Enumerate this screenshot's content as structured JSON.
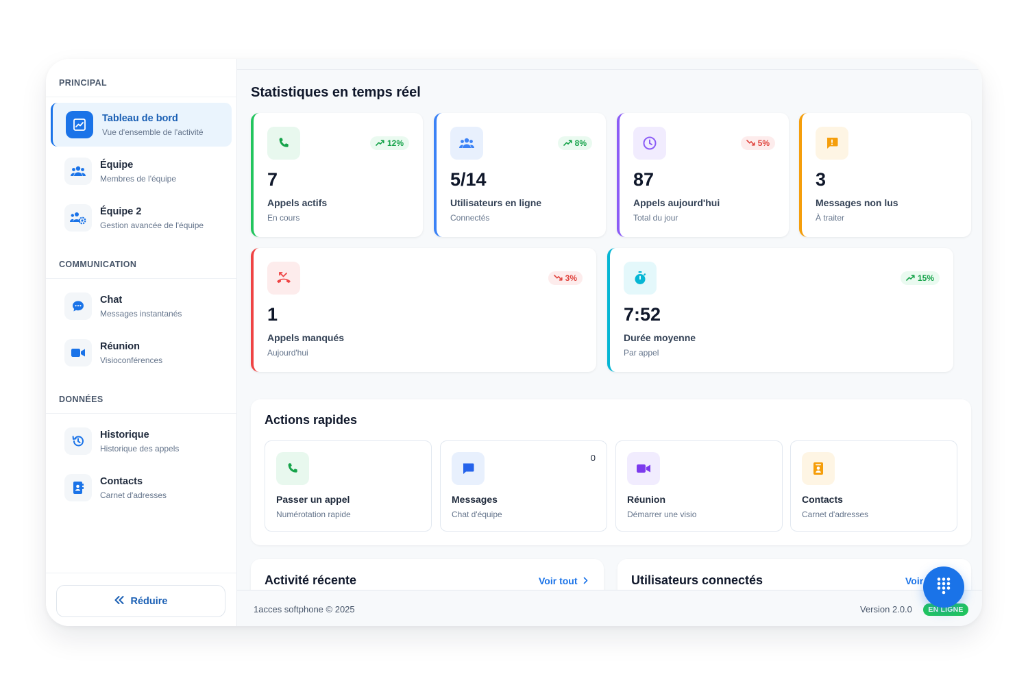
{
  "sidebar": {
    "sections": [
      {
        "title": "PRINCIPAL",
        "items": [
          {
            "label": "Tableau de bord",
            "sub": "Vue d'ensemble de l'activité",
            "icon": "chart-line-icon",
            "active": true
          },
          {
            "label": "Équipe",
            "sub": "Membres de l'équipe",
            "icon": "users-icon"
          },
          {
            "label": "Équipe 2",
            "sub": "Gestion avancée de l'équipe",
            "icon": "users-gear-icon"
          }
        ]
      },
      {
        "title": "COMMUNICATION",
        "items": [
          {
            "label": "Chat",
            "sub": "Messages instantanés",
            "icon": "chat-bubble-icon"
          },
          {
            "label": "Réunion",
            "sub": "Visioconférences",
            "icon": "video-camera-icon"
          }
        ]
      },
      {
        "title": "DONNÉES",
        "items": [
          {
            "label": "Historique",
            "sub": "Historique des appels",
            "icon": "history-icon"
          },
          {
            "label": "Contacts",
            "sub": "Carnet d'adresses",
            "icon": "address-book-icon"
          }
        ]
      }
    ],
    "collapse_label": "Réduire"
  },
  "main": {
    "title": "Statistiques en temps réel",
    "stats": [
      {
        "value": "7",
        "label": "Appels actifs",
        "sub": "En cours",
        "trend": "12%",
        "direction": "up",
        "color": "#22c55e",
        "icon": "phone-icon"
      },
      {
        "value": "5/14",
        "label": "Utilisateurs en ligne",
        "sub": "Connectés",
        "trend": "8%",
        "direction": "up",
        "color": "#3b82f6",
        "icon": "users-icon"
      },
      {
        "value": "87",
        "label": "Appels aujourd'hui",
        "sub": "Total du jour",
        "trend": "5%",
        "direction": "down",
        "color": "#8b5cf6",
        "icon": "clock-icon"
      },
      {
        "value": "3",
        "label": "Messages non lus",
        "sub": "À traiter",
        "trend": "",
        "direction": "none",
        "color": "#f59e0b",
        "icon": "message-alert-icon"
      },
      {
        "value": "1",
        "label": "Appels manqués",
        "sub": "Aujourd'hui",
        "trend": "3%",
        "direction": "down",
        "color": "#ef4444",
        "icon": "missed-call-icon"
      },
      {
        "value": "7:52",
        "label": "Durée moyenne",
        "sub": "Par appel",
        "trend": "15%",
        "direction": "up",
        "color": "#06b6d4",
        "icon": "stopwatch-icon"
      }
    ],
    "quick_actions": {
      "title": "Actions rapides",
      "items": [
        {
          "label": "Passer un appel",
          "sub": "Numérotation rapide",
          "icon": "phone-icon",
          "color": "#16a34a"
        },
        {
          "label": "Messages",
          "sub": "Chat d'équipe",
          "count": "0",
          "icon": "chat-square-icon",
          "color": "#2563eb"
        },
        {
          "label": "Réunion",
          "sub": "Démarrer une visio",
          "icon": "video-camera-icon",
          "color": "#7c3aed"
        },
        {
          "label": "Contacts",
          "sub": "Carnet d'adresses",
          "icon": "address-book-icon",
          "color": "#f59e0b"
        }
      ]
    },
    "recent_activity": {
      "title": "Activité récente",
      "link": "Voir tout"
    },
    "connected_users": {
      "title": "Utilisateurs connectés",
      "link": "Voir"
    }
  },
  "footer": {
    "copyright": "1acces softphone © 2025",
    "version": "Version 2.0.0",
    "status": "EN LIGNE"
  },
  "fab": {
    "icon": "dialpad-icon"
  }
}
